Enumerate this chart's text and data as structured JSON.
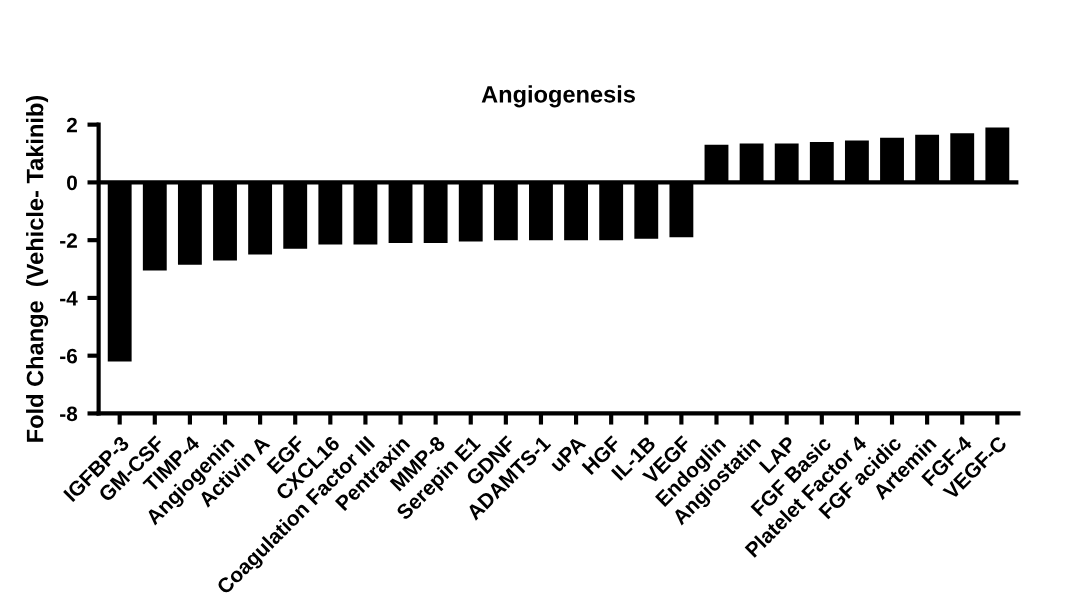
{
  "chart_data": {
    "type": "bar",
    "title": "Angiogenesis",
    "ylabel": "Fold Change  (Vehicle- Takinib)",
    "categories": [
      "IGFBP-3",
      "GM-CSF",
      "TIMP-4",
      "Angiogenin",
      "Activin A",
      "EGF",
      "CXCL16",
      "Coagulation Factor III",
      "Pentraxin",
      "MMP-8",
      "Serepin E1",
      "GDNF",
      "ADAMTS-1",
      "uPA",
      "HGF",
      "IL-1B",
      "VEGF",
      "Endoglin",
      "Angiostatin",
      "LAP",
      "FGF Basic",
      "Platelet Factor 4",
      "FGF acidic",
      "Artemin",
      "FGF-4",
      "VEGF-C"
    ],
    "values": [
      -6.2,
      -3.05,
      -2.85,
      -2.7,
      -2.5,
      -2.3,
      -2.15,
      -2.15,
      -2.1,
      -2.1,
      -2.05,
      -2.0,
      -2.0,
      -2.0,
      -2.0,
      -1.95,
      -1.9,
      1.3,
      1.35,
      1.35,
      1.4,
      1.45,
      1.55,
      1.65,
      1.7,
      1.9
    ],
    "color": "#000000",
    "ylim": [
      -8,
      2
    ],
    "yticks": [
      -8,
      -6,
      -4,
      -2,
      0,
      2
    ],
    "grid": false,
    "ref_lines": [
      {
        "axis": "y",
        "value": 0,
        "color": "#000000"
      }
    ]
  }
}
